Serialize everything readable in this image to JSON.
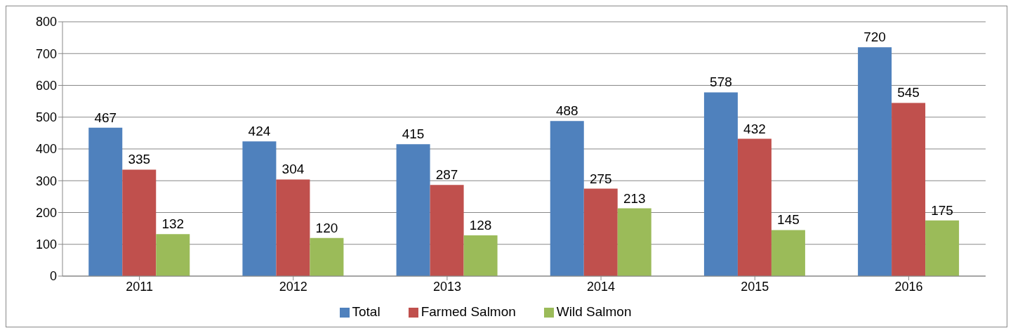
{
  "chart_data": {
    "type": "bar",
    "categories": [
      "2011",
      "2012",
      "2013",
      "2014",
      "2015",
      "2016"
    ],
    "series": [
      {
        "name": "Total",
        "color": "#4f81bd",
        "values": [
          467,
          424,
          415,
          488,
          578,
          720
        ]
      },
      {
        "name": "Farmed Salmon",
        "color": "#c0504d",
        "values": [
          335,
          304,
          287,
          275,
          432,
          545
        ]
      },
      {
        "name": "Wild Salmon",
        "color": "#9bbb59",
        "values": [
          132,
          120,
          128,
          213,
          145,
          175
        ]
      }
    ],
    "ylim": [
      0,
      800
    ],
    "yticks": [
      0,
      100,
      200,
      300,
      400,
      500,
      600,
      700,
      800
    ],
    "grid": "y",
    "legend": "bottom",
    "data_labels": true
  }
}
